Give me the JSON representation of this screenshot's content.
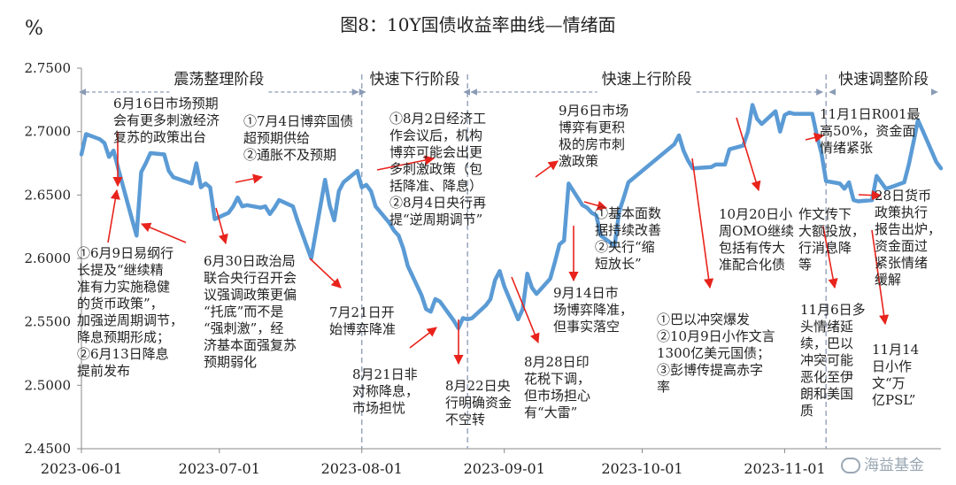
{
  "chart_data": {
    "type": "line",
    "title": "图8：10Y国债收益率曲线—情绪面",
    "ylabel": "%",
    "xlabel": "",
    "ylim": [
      2.45,
      2.75
    ],
    "y_ticks": [
      "2.4500",
      "2.5000",
      "2.5500",
      "2.6000",
      "2.6500",
      "2.7000",
      "2.7500"
    ],
    "x_ticks": [
      "2023-06-01",
      "2023-07-01",
      "2023-08-01",
      "2023-09-01",
      "2023-10-01",
      "2023-11-01"
    ],
    "grid": false,
    "line_color": "#5b9bd5",
    "series": [
      {
        "name": "",
        "points": [
          [
            "2023-06-01",
            2.682
          ],
          [
            "2023-06-02",
            2.698
          ],
          [
            "2023-06-05",
            2.694
          ],
          [
            "2023-06-06",
            2.691
          ],
          [
            "2023-06-07",
            2.68
          ],
          [
            "2023-06-08",
            2.685
          ],
          [
            "2023-06-09",
            2.671
          ],
          [
            "2023-06-12",
            2.631
          ],
          [
            "2023-06-13",
            2.618
          ],
          [
            "2023-06-14",
            2.668
          ],
          [
            "2023-06-15",
            2.675
          ],
          [
            "2023-06-16",
            2.683
          ],
          [
            "2023-06-19",
            2.682
          ],
          [
            "2023-06-20",
            2.669
          ],
          [
            "2023-06-21",
            2.664
          ],
          [
            "2023-06-25",
            2.659
          ],
          [
            "2023-06-26",
            2.675
          ],
          [
            "2023-06-27",
            2.656
          ],
          [
            "2023-06-28",
            2.659
          ],
          [
            "2023-06-29",
            2.656
          ],
          [
            "2023-06-30",
            2.631
          ],
          [
            "2023-07-03",
            2.636
          ],
          [
            "2023-07-04",
            2.641
          ],
          [
            "2023-07-05",
            2.648
          ],
          [
            "2023-07-06",
            2.641
          ],
          [
            "2023-07-07",
            2.642
          ],
          [
            "2023-07-10",
            2.64
          ],
          [
            "2023-07-11",
            2.641
          ],
          [
            "2023-07-12",
            2.635
          ],
          [
            "2023-07-13",
            2.64
          ],
          [
            "2023-07-14",
            2.646
          ],
          [
            "2023-07-17",
            2.641
          ],
          [
            "2023-07-18",
            2.63
          ],
          [
            "2023-07-19",
            2.62
          ],
          [
            "2023-07-20",
            2.61
          ],
          [
            "2023-07-21",
            2.6
          ],
          [
            "2023-07-24",
            2.662
          ],
          [
            "2023-07-25",
            2.642
          ],
          [
            "2023-07-26",
            2.63
          ],
          [
            "2023-07-27",
            2.653
          ],
          [
            "2023-07-28",
            2.66
          ],
          [
            "2023-07-31",
            2.669
          ],
          [
            "2023-08-01",
            2.656
          ],
          [
            "2023-08-02",
            2.658
          ],
          [
            "2023-08-03",
            2.653
          ],
          [
            "2023-08-04",
            2.641
          ],
          [
            "2023-08-07",
            2.628
          ],
          [
            "2023-08-08",
            2.622
          ],
          [
            "2023-08-09",
            2.618
          ],
          [
            "2023-08-10",
            2.608
          ],
          [
            "2023-08-11",
            2.594
          ],
          [
            "2023-08-14",
            2.571
          ],
          [
            "2023-08-15",
            2.56
          ],
          [
            "2023-08-16",
            2.558
          ],
          [
            "2023-08-17",
            2.568
          ],
          [
            "2023-08-18",
            2.566
          ],
          [
            "2023-08-21",
            2.551
          ],
          [
            "2023-08-22",
            2.545
          ],
          [
            "2023-08-23",
            2.553
          ],
          [
            "2023-08-24",
            2.552
          ],
          [
            "2023-08-25",
            2.553
          ],
          [
            "2023-08-28",
            2.563
          ],
          [
            "2023-08-29",
            2.568
          ],
          [
            "2023-08-30",
            2.583
          ],
          [
            "2023-08-31",
            2.59
          ],
          [
            "2023-09-01",
            2.578
          ],
          [
            "2023-09-04",
            2.552
          ],
          [
            "2023-09-05",
            2.56
          ],
          [
            "2023-09-06",
            2.588
          ],
          [
            "2023-09-07",
            2.577
          ],
          [
            "2023-09-08",
            2.572
          ],
          [
            "2023-09-11",
            2.584
          ],
          [
            "2023-09-12",
            2.597
          ],
          [
            "2023-09-13",
            2.611
          ],
          [
            "2023-09-14",
            2.614
          ],
          [
            "2023-09-15",
            2.659
          ],
          [
            "2023-09-18",
            2.642
          ],
          [
            "2023-09-19",
            2.64
          ],
          [
            "2023-09-20",
            2.636
          ],
          [
            "2023-09-21",
            2.634
          ],
          [
            "2023-09-22",
            2.618
          ],
          [
            "2023-09-25",
            2.61
          ],
          [
            "2023-09-26",
            2.637
          ],
          [
            "2023-09-27",
            2.648
          ],
          [
            "2023-09-28",
            2.66
          ],
          [
            "2023-10-08",
            2.69
          ],
          [
            "2023-10-09",
            2.697
          ],
          [
            "2023-10-10",
            2.685
          ],
          [
            "2023-10-11",
            2.677
          ],
          [
            "2023-10-12",
            2.671
          ],
          [
            "2023-10-16",
            2.672
          ],
          [
            "2023-10-17",
            2.674
          ],
          [
            "2023-10-18",
            2.674
          ],
          [
            "2023-10-19",
            2.674
          ],
          [
            "2023-10-20",
            2.686
          ],
          [
            "2023-10-23",
            2.689
          ],
          [
            "2023-10-24",
            2.7
          ],
          [
            "2023-10-25",
            2.721
          ],
          [
            "2023-10-26",
            2.71
          ],
          [
            "2023-10-27",
            2.706
          ],
          [
            "2023-10-30",
            2.716
          ],
          [
            "2023-10-31",
            2.7
          ],
          [
            "2023-11-01",
            2.713
          ],
          [
            "2023-11-02",
            2.715
          ],
          [
            "2023-11-03",
            2.714
          ],
          [
            "2023-11-06",
            2.714
          ],
          [
            "2023-11-07",
            2.714
          ],
          [
            "2023-11-08",
            2.697
          ],
          [
            "2023-11-09",
            2.683
          ],
          [
            "2023-11-10",
            2.661
          ],
          [
            "2023-11-13",
            2.659
          ],
          [
            "2023-11-14",
            2.655
          ],
          [
            "2023-11-15",
            2.66
          ],
          [
            "2023-11-16",
            2.646
          ],
          [
            "2023-11-17",
            2.645
          ],
          [
            "2023-11-20",
            2.646
          ],
          [
            "2023-11-21",
            2.665
          ],
          [
            "2023-11-22",
            2.66
          ],
          [
            "2023-11-23",
            2.655
          ],
          [
            "2023-11-24",
            2.656
          ],
          [
            "2023-11-27",
            2.66
          ],
          [
            "2023-11-28",
            2.674
          ],
          [
            "2023-11-29",
            2.691
          ],
          [
            "2023-11-30",
            2.709
          ],
          [
            "2023-12-01",
            2.701
          ],
          [
            "2023-12-04",
            2.676
          ],
          [
            "2023-12-05",
            2.671
          ]
        ]
      }
    ],
    "phases": [
      {
        "label": "震荡整理阶段",
        "start": "2023-06-01",
        "end": "2023-08-01"
      },
      {
        "label": "快速下行阶段",
        "start": "2023-08-01",
        "end": "2023-08-24"
      },
      {
        "label": "快速上行阶段",
        "start": "2023-08-24",
        "end": "2023-11-10"
      },
      {
        "label": "快速调整阶段",
        "start": "2023-11-10",
        "end": "2023-12-05"
      }
    ],
    "phase_dividers": [
      "2023-08-01",
      "2023-08-24",
      "2023-11-10"
    ],
    "annotations": [
      {
        "id": "a1",
        "lines": [
          "6月16日市场预期",
          "会有更多刺激经济",
          "复苏的政策出台"
        ]
      },
      {
        "id": "a2",
        "lines": [
          "①7月4日博弈国债",
          "超预期供给",
          "②通胀不及预期"
        ]
      },
      {
        "id": "a3",
        "lines": [
          "①8月2日经济工",
          "作会议后，机构",
          "博弈可能会出更",
          "多刺激政策（包",
          "括降准、降息）",
          "②8月4日央行再",
          "提“逆周期调节”"
        ]
      },
      {
        "id": "a4",
        "lines": [
          "9月6日市场",
          "博弈有更积",
          "极的房市刺",
          "激政策"
        ]
      },
      {
        "id": "a5",
        "lines": [
          "11月1日R001最",
          "高50%，资金面",
          "情绪紧张"
        ]
      },
      {
        "id": "a6",
        "lines": [
          "①6月9日易纲行",
          "长提及“继续精",
          "准有力实施稳健",
          "的货币政策”，",
          "加强逆周期调节，",
          "降息预期形成；",
          "②6月13日降息",
          "提前发布"
        ]
      },
      {
        "id": "a7",
        "lines": [
          "6月30日政治局",
          "联合央行召开会",
          "议强调政策更偏",
          "“托底”而不是",
          "“强刺激”，经",
          "济基本面强复苏",
          "预期弱化"
        ]
      },
      {
        "id": "a8",
        "lines": [
          "7月21日开",
          "始博弈降准"
        ]
      },
      {
        "id": "a9",
        "lines": [
          "8月21日非",
          "对称降息，",
          "市场担忧"
        ]
      },
      {
        "id": "a10",
        "lines": [
          "8月22日央",
          "行明确资金",
          "不空转"
        ]
      },
      {
        "id": "a11",
        "lines": [
          "8月28日印",
          "花税下调，",
          "但市场担心",
          "有“大雷”"
        ]
      },
      {
        "id": "a12",
        "lines": [
          "①基本面数",
          "据持续改善",
          "②央行“缩",
          "短放长”"
        ]
      },
      {
        "id": "a13",
        "lines": [
          "9月14日市",
          "场博弈降准，",
          "但事实落空"
        ]
      },
      {
        "id": "a14",
        "lines": [
          "①巴以冲突爆发",
          "②10月9日小作文言",
          "1300亿美元国债；",
          "③彭博传提高赤字",
          "率"
        ]
      },
      {
        "id": "a15",
        "lines": [
          "10月20日小",
          "周OMO继续",
          "包括有传大",
          "准配合化债"
        ]
      },
      {
        "id": "a16",
        "lines": [
          "作文传下",
          "大额投放，",
          "行消息降",
          "等"
        ]
      },
      {
        "id": "a17",
        "lines": [
          "11月6日多",
          "头情绪延",
          "续，巴以",
          "冲突可能",
          "恶化至伊",
          "朗和美国",
          "质"
        ]
      },
      {
        "id": "a18",
        "lines": [
          "28日货币",
          "政策执行",
          "报告出炉，",
          "资金面过",
          "紧张情绪",
          "缓解"
        ]
      },
      {
        "id": "a19",
        "lines": [
          "11月14",
          "日小作",
          "文“万",
          "亿PSL”"
        ]
      }
    ],
    "arrow_color": "#e8231c"
  },
  "watermark": "海益基金"
}
